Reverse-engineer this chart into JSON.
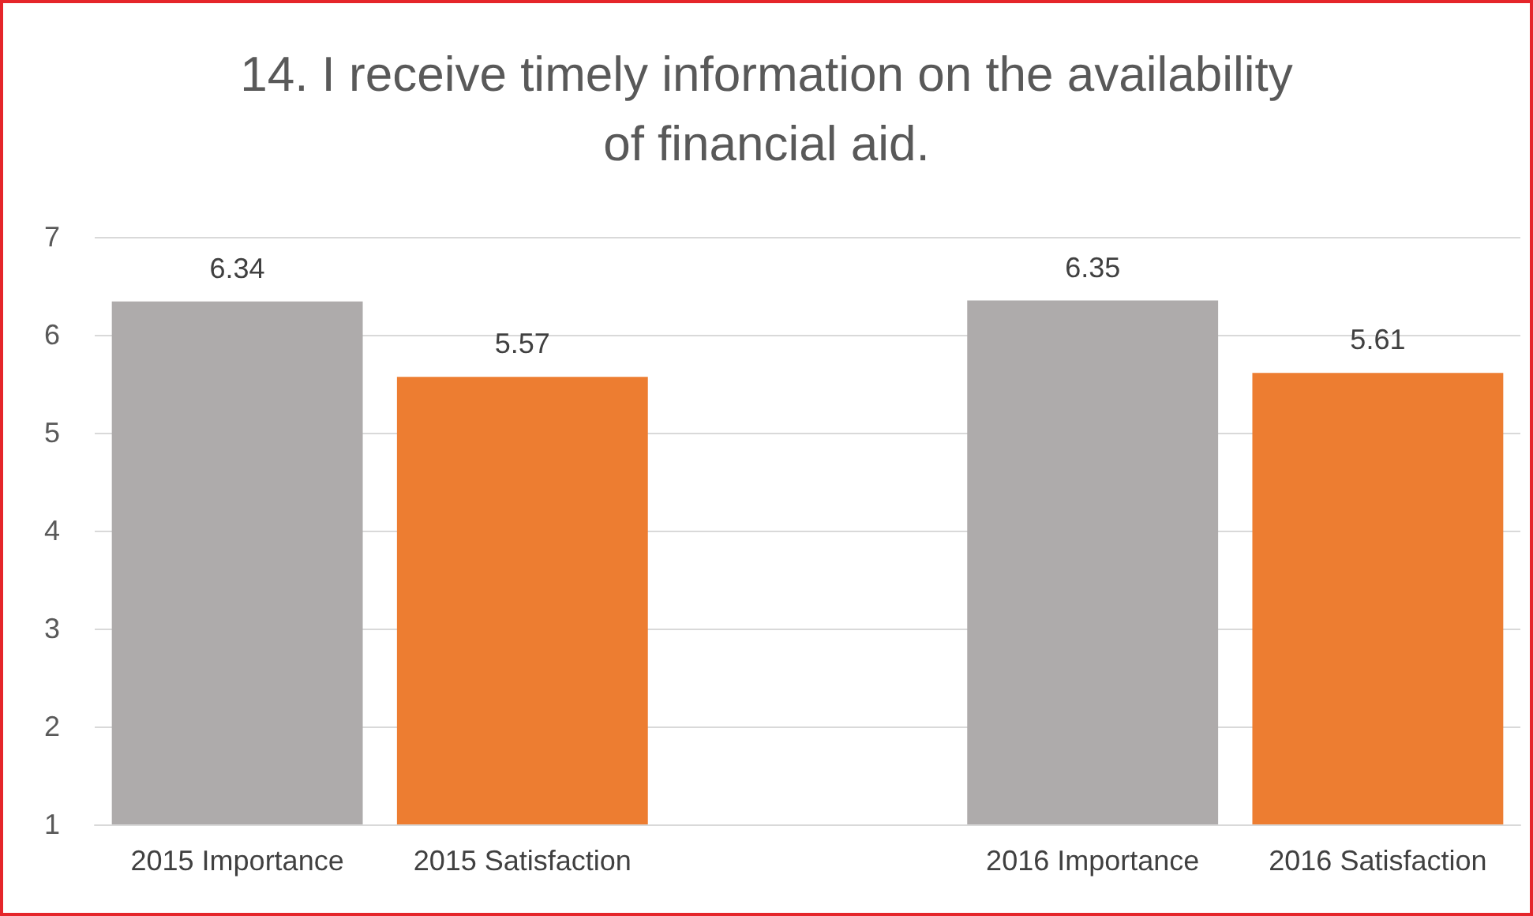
{
  "chart_data": {
    "type": "bar",
    "title": "14. I receive timely information on the availability\nof financial aid.",
    "categories": [
      "2015 Importance",
      "2015 Satisfaction",
      null,
      "2016 Importance",
      "2016 Satisfaction"
    ],
    "values": [
      6.34,
      5.57,
      null,
      6.35,
      5.61
    ],
    "colors": [
      "#aeabab",
      "#ed7d31",
      null,
      "#aeabab",
      "#ed7d31"
    ],
    "ylim": [
      1,
      7
    ],
    "yticks": [
      1,
      2,
      3,
      4,
      5,
      6,
      7
    ],
    "grid": "y",
    "data_labels": true
  }
}
